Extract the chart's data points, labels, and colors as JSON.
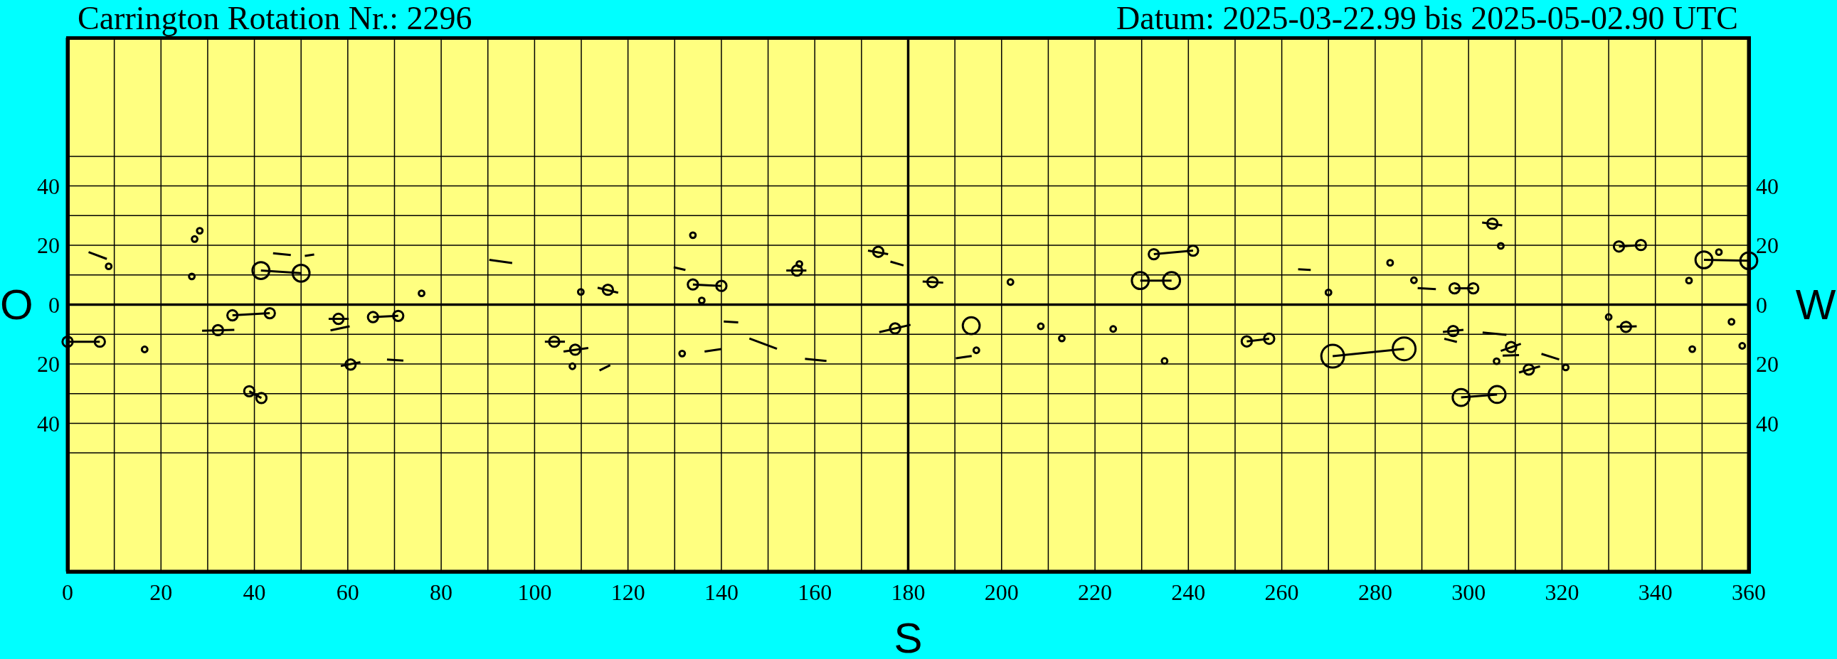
{
  "chart_data": {
    "type": "bubble",
    "title": "Carrington Rotation Nr.: 2296",
    "subtitle": "Datum: 2025-03-22.99 bis 2025-05-02.90 UTC",
    "xlabel": "S",
    "ylabel": "O",
    "y2label": "W",
    "xlim": [
      0,
      360
    ],
    "xticks": [
      0,
      {
        "value": 10,
        "label": null
      },
      20,
      {
        "value": 30,
        "label": null
      },
      40,
      {
        "value": 50,
        "label": null
      },
      60,
      {
        "value": 70,
        "label": null
      },
      80,
      {
        "value": 90,
        "label": null
      },
      100,
      {
        "value": 110,
        "label": null
      },
      120,
      {
        "value": 130,
        "label": null
      },
      140,
      {
        "value": 150,
        "label": null
      },
      160,
      {
        "value": 170,
        "label": null
      },
      180,
      {
        "value": 190,
        "label": null
      },
      200,
      {
        "value": 210,
        "label": null
      },
      220,
      {
        "value": 230,
        "label": null
      },
      240,
      {
        "value": 250,
        "label": null
      },
      260,
      {
        "value": 270,
        "label": null
      },
      280,
      {
        "value": 290,
        "label": null
      },
      300,
      {
        "value": 310,
        "label": null
      },
      320,
      {
        "value": 330,
        "label": null
      },
      340,
      {
        "value": 350,
        "label": null
      },
      360
    ],
    "ylim": [
      -90,
      90
    ],
    "yticks": [
      {
        "value": -50,
        "label": null
      },
      {
        "value": -40,
        "label": "40"
      },
      {
        "value": -30,
        "label": null
      },
      {
        "value": -20,
        "label": "20"
      },
      {
        "value": -10,
        "label": null
      },
      0,
      {
        "value": 10,
        "label": null
      },
      20,
      {
        "value": 30,
        "label": null
      },
      40,
      {
        "value": 50,
        "label": null
      }
    ],
    "y2lim": [
      -90,
      90
    ],
    "y2ticks": [
      {
        "value": -50,
        "label": null
      },
      {
        "value": -40,
        "label": "40"
      },
      {
        "value": -30,
        "label": null
      },
      {
        "value": -20,
        "label": "20"
      },
      {
        "value": -10,
        "label": null
      },
      0,
      {
        "value": 10,
        "label": null
      },
      20,
      {
        "value": 30,
        "label": null
      },
      40,
      {
        "value": 50,
        "label": null
      }
    ],
    "grid": true,
    "ref_lines": [
      {
        "axis": "y",
        "value": 0,
        "color": "#000000"
      },
      {
        "axis": "x",
        "value": 180,
        "color": "#000000"
      }
    ],
    "series": [
      {
        "color": "#000000",
        "x": [
          8.8,
          28.3,
          27.2,
          26.6,
          41.4,
          50,
          35.3,
          43.3,
          32.2,
          0,
          6.9,
          16.5,
          38.9,
          41.5,
          58,
          60.6,
          65.4,
          70.8,
          75.8,
          109.9,
          115.7,
          133.9,
          133.9,
          140,
          135.8,
          104.2,
          108.7,
          108.1,
          131.6,
          156.2,
          156.7,
          173.6,
          185.2,
          201.9,
          177.2,
          193.5,
          208.4,
          212.9,
          223.9,
          194.6,
          229.7,
          236.4,
          232.6,
          241,
          270,
          283.2,
          288.3,
          297,
          301,
          305.1,
          306.9,
          252.5,
          257.3,
          234.9,
          270.9,
          286.2,
          296.7,
          309.1,
          306,
          312.9,
          320.8,
          298.4,
          306.1,
          330,
          333.7,
          332.2,
          336.9,
          347.9,
          347.2,
          353.6,
          350.4,
          360,
          356.3,
          358.6
        ],
        "values": [
          12.9,
          24.9,
          22.1,
          9.5,
          11.5,
          10.6,
          -3.6,
          -2.9,
          -8.6,
          -12.5,
          -12.5,
          -15.1,
          -29.2,
          -31.5,
          -4.8,
          -20.2,
          -4.2,
          -3.8,
          3.8,
          4.3,
          5,
          23.4,
          6.8,
          6.3,
          1.4,
          -12.5,
          -15.2,
          -20.8,
          -16.5,
          11.5,
          13.7,
          17.8,
          7.6,
          7.6,
          -8,
          -7.1,
          -7.3,
          -11.4,
          -8.2,
          -15.4,
          8.1,
          8.1,
          17,
          18.2,
          4.1,
          14.1,
          8.2,
          5.5,
          5.5,
          27.3,
          19.8,
          -12.4,
          -11.5,
          -19,
          -17.4,
          -14.9,
          -8.9,
          -14.3,
          -19.1,
          -21.9,
          -21.2,
          -31.3,
          -30.3,
          -4.2,
          -7.5,
          19.6,
          20.1,
          -15,
          8.1,
          17.7,
          15.1,
          14.8,
          -5.8,
          -13.9
        ],
        "sizes": [
          0.06,
          0.06,
          0.06,
          0.06,
          0.55,
          0.55,
          0.2,
          0.2,
          0.2,
          0.2,
          0.2,
          0.06,
          0.2,
          0.2,
          0.2,
          0.2,
          0.2,
          0.2,
          0.06,
          0.06,
          0.2,
          0.06,
          0.2,
          0.2,
          0.06,
          0.2,
          0.2,
          0.06,
          0.06,
          0.2,
          0.06,
          0.2,
          0.2,
          0.06,
          0.2,
          0.55,
          0.06,
          0.06,
          0.06,
          0.06,
          0.55,
          0.55,
          0.2,
          0.2,
          0.06,
          0.06,
          0.06,
          0.2,
          0.2,
          0.2,
          0.06,
          0.2,
          0.2,
          0.06,
          1,
          1,
          0.2,
          0.2,
          0.06,
          0.2,
          0.06,
          0.55,
          0.55,
          0.06,
          0.2,
          0.2,
          0.2,
          0.06,
          0.06,
          0.06,
          0.55,
          0.55,
          0.06,
          0.06
        ]
      },
      {
        "type": "line",
        "color": "#000000",
        "x": [
          4.5,
          8.4
        ],
        "values": [
          17.7,
          15.4
        ]
      },
      {
        "type": "line",
        "color": "#000000",
        "x": [
          41.4,
          50
        ],
        "values": [
          11.5,
          10.6
        ]
      },
      {
        "type": "line",
        "color": "#000000",
        "x": [
          44,
          47.8
        ],
        "values": [
          17.3,
          16.7
        ]
      },
      {
        "type": "line",
        "color": "#000000",
        "x": [
          50.8,
          52.8
        ],
        "values": [
          16.4,
          16.9
        ]
      },
      {
        "type": "line",
        "color": "#000000",
        "x": [
          35.3,
          43.3
        ],
        "values": [
          -3.6,
          -2.9
        ]
      },
      {
        "type": "line",
        "color": "#000000",
        "x": [
          28.8,
          35.7
        ],
        "values": [
          -8.8,
          -8.5
        ]
      },
      {
        "type": "line",
        "color": "#000000",
        "x": [
          0,
          6.9
        ],
        "values": [
          -12.5,
          -12.5
        ]
      },
      {
        "type": "line",
        "color": "#000000",
        "x": [
          38.9,
          41.5
        ],
        "values": [
          -29.2,
          -31.5
        ]
      },
      {
        "type": "line",
        "color": "#000000",
        "x": [
          55.9,
          60.2
        ],
        "values": [
          -4.8,
          -4.8
        ]
      },
      {
        "type": "line",
        "color": "#000000",
        "x": [
          56.3,
          60.4
        ],
        "values": [
          -8.7,
          -7.3
        ]
      },
      {
        "type": "line",
        "color": "#000000",
        "x": [
          58.5,
          62.7
        ],
        "values": [
          -20.7,
          -19.4
        ]
      },
      {
        "type": "line",
        "color": "#000000",
        "x": [
          65.4,
          70.8
        ],
        "values": [
          -4.2,
          -3.8
        ]
      },
      {
        "type": "line",
        "color": "#000000",
        "x": [
          68.4,
          71.9
        ],
        "values": [
          -18.5,
          -18.9
        ]
      },
      {
        "type": "line",
        "color": "#000000",
        "x": [
          90.3,
          95.2
        ],
        "values": [
          15.1,
          14
        ]
      },
      {
        "type": "line",
        "color": "#000000",
        "x": [
          113.5,
          117.9
        ],
        "values": [
          5.7,
          4
        ]
      },
      {
        "type": "line",
        "color": "#000000",
        "x": [
          129.8,
          132.3
        ],
        "values": [
          12.6,
          11.7
        ]
      },
      {
        "type": "line",
        "color": "#000000",
        "x": [
          133.9,
          140
        ],
        "values": [
          6.8,
          6.3
        ]
      },
      {
        "type": "line",
        "color": "#000000",
        "x": [
          140.5,
          143.6
        ],
        "values": [
          -5.7,
          -6
        ]
      },
      {
        "type": "line",
        "color": "#000000",
        "x": [
          146,
          151.9
        ],
        "values": [
          -11.4,
          -14.9
        ]
      },
      {
        "type": "line",
        "color": "#000000",
        "x": [
          102.2,
          106.5
        ],
        "values": [
          -12.5,
          -12.5
        ]
      },
      {
        "type": "line",
        "color": "#000000",
        "x": [
          106.2,
          111.5
        ],
        "values": [
          -15.8,
          -14.6
        ]
      },
      {
        "type": "line",
        "color": "#000000",
        "x": [
          113.9,
          116.2
        ],
        "values": [
          -22.2,
          -20.4
        ]
      },
      {
        "type": "line",
        "color": "#000000",
        "x": [
          136.4,
          140
        ],
        "values": [
          -15.8,
          -15
        ]
      },
      {
        "type": "line",
        "color": "#000000",
        "x": [
          153.9,
          158.2
        ],
        "values": [
          11.5,
          11.5
        ]
      },
      {
        "type": "line",
        "color": "#000000",
        "x": [
          171.4,
          175.7
        ],
        "values": [
          18.2,
          17
        ]
      },
      {
        "type": "line",
        "color": "#000000",
        "x": [
          176.2,
          179
        ],
        "values": [
          14.5,
          13.2
        ]
      },
      {
        "type": "line",
        "color": "#000000",
        "x": [
          183.1,
          187.5
        ],
        "values": [
          7.8,
          7.4
        ]
      },
      {
        "type": "line",
        "color": "#000000",
        "x": [
          173.8,
          180.5
        ],
        "values": [
          -9.3,
          -6.8
        ]
      },
      {
        "type": "line",
        "color": "#000000",
        "x": [
          190.2,
          193.6
        ],
        "values": [
          -18.1,
          -17.3
        ]
      },
      {
        "type": "line",
        "color": "#000000",
        "x": [
          157.9,
          162.5
        ],
        "values": [
          -18.3,
          -19
        ]
      },
      {
        "type": "line",
        "color": "#000000",
        "x": [
          229.7,
          236.4
        ],
        "values": [
          8.1,
          8.1
        ]
      },
      {
        "type": "line",
        "color": "#000000",
        "x": [
          232.6,
          241
        ],
        "values": [
          17,
          18.2
        ]
      },
      {
        "type": "line",
        "color": "#000000",
        "x": [
          263.5,
          266.2
        ],
        "values": [
          11.9,
          11.7
        ]
      },
      {
        "type": "line",
        "color": "#000000",
        "x": [
          289.1,
          293
        ],
        "values": [
          5.6,
          5.2
        ]
      },
      {
        "type": "line",
        "color": "#000000",
        "x": [
          297,
          301
        ],
        "values": [
          5.5,
          5.5
        ]
      },
      {
        "type": "line",
        "color": "#000000",
        "x": [
          302.9,
          307.2
        ],
        "values": [
          27.7,
          26.7
        ]
      },
      {
        "type": "line",
        "color": "#000000",
        "x": [
          252.5,
          257.3
        ],
        "values": [
          -12.4,
          -11.5
        ]
      },
      {
        "type": "line",
        "color": "#000000",
        "x": [
          270.9,
          286.2
        ],
        "values": [
          -17.4,
          -14.9
        ]
      },
      {
        "type": "line",
        "color": "#000000",
        "x": [
          294.5,
          298.9
        ],
        "values": [
          -9.2,
          -8.5
        ]
      },
      {
        "type": "line",
        "color": "#000000",
        "x": [
          294.8,
          297.5
        ],
        "values": [
          -11.5,
          -12.6
        ]
      },
      {
        "type": "line",
        "color": "#000000",
        "x": [
          303,
          308.1
        ],
        "values": [
          -9.4,
          -10.2
        ]
      },
      {
        "type": "line",
        "color": "#000000",
        "x": [
          306.9,
          311.2
        ],
        "values": [
          -15.6,
          -13.2
        ]
      },
      {
        "type": "line",
        "color": "#000000",
        "x": [
          307.3,
          310.8
        ],
        "values": [
          -17.2,
          -17
        ]
      },
      {
        "type": "line",
        "color": "#000000",
        "x": [
          310.8,
          315.3
        ],
        "values": [
          -22.9,
          -20.8
        ]
      },
      {
        "type": "line",
        "color": "#000000",
        "x": [
          315.6,
          319.4
        ],
        "values": [
          -16.6,
          -18.5
        ]
      },
      {
        "type": "line",
        "color": "#000000",
        "x": [
          298.4,
          306.1
        ],
        "values": [
          -31.3,
          -30.3
        ]
      },
      {
        "type": "line",
        "color": "#000000",
        "x": [
          331.7,
          336
        ],
        "values": [
          -7.5,
          -7.3
        ]
      },
      {
        "type": "line",
        "color": "#000000",
        "x": [
          332.2,
          336.9
        ],
        "values": [
          19.6,
          20.1
        ]
      },
      {
        "type": "line",
        "color": "#000000",
        "x": [
          350.4,
          360
        ],
        "values": [
          15.1,
          14.8
        ]
      }
    ]
  }
}
